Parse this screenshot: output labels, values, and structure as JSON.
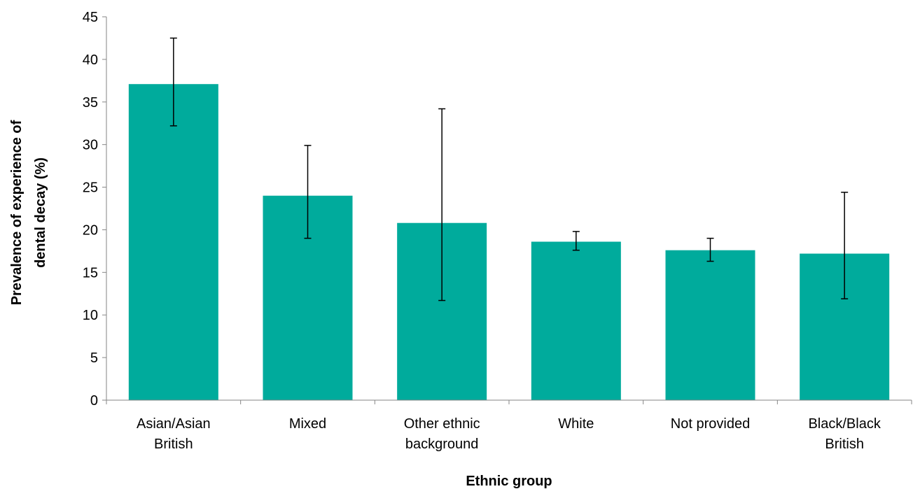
{
  "colors": {
    "bar": "#00ab9c",
    "axis": "#868686",
    "error": "#000000",
    "text": "#000000"
  },
  "chart_data": {
    "type": "bar",
    "title": "",
    "xlabel": "Ethnic group",
    "ylabel_lines": [
      "Prevalence of experience of",
      "dental decay (%)"
    ],
    "categories": [
      [
        "Asian/Asian",
        "British"
      ],
      [
        "Mixed"
      ],
      [
        "Other ethnic",
        "background"
      ],
      [
        "White"
      ],
      [
        "Not provided"
      ],
      [
        "Black/Black",
        "British"
      ]
    ],
    "values": [
      37.1,
      24.0,
      20.8,
      18.6,
      17.6,
      17.2
    ],
    "error_low": [
      32.2,
      19.0,
      11.7,
      17.6,
      16.3,
      11.9
    ],
    "error_high": [
      42.5,
      29.9,
      34.2,
      19.8,
      19.0,
      24.4
    ],
    "ylim": [
      0,
      45
    ],
    "yticks": [
      0,
      5,
      10,
      15,
      20,
      25,
      30,
      35,
      40,
      45
    ],
    "grid": false,
    "legend": "none"
  }
}
